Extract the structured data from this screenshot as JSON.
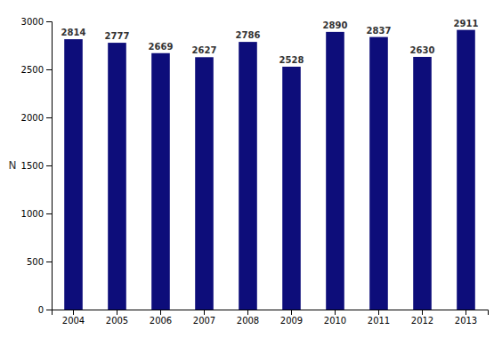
{
  "chart_data": {
    "type": "bar",
    "categories": [
      "2004",
      "2005",
      "2006",
      "2007",
      "2008",
      "2009",
      "2010",
      "2011",
      "2012",
      "2013"
    ],
    "values": [
      2814,
      2777,
      2669,
      2627,
      2786,
      2528,
      2890,
      2837,
      2630,
      2911
    ],
    "color": "#0D0D7A",
    "ylabel": "N",
    "ylim": [
      0,
      3000
    ],
    "yticks": [
      0,
      500,
      1000,
      1500,
      2000,
      2500,
      3000
    ],
    "grid": false,
    "data_labels": true
  }
}
